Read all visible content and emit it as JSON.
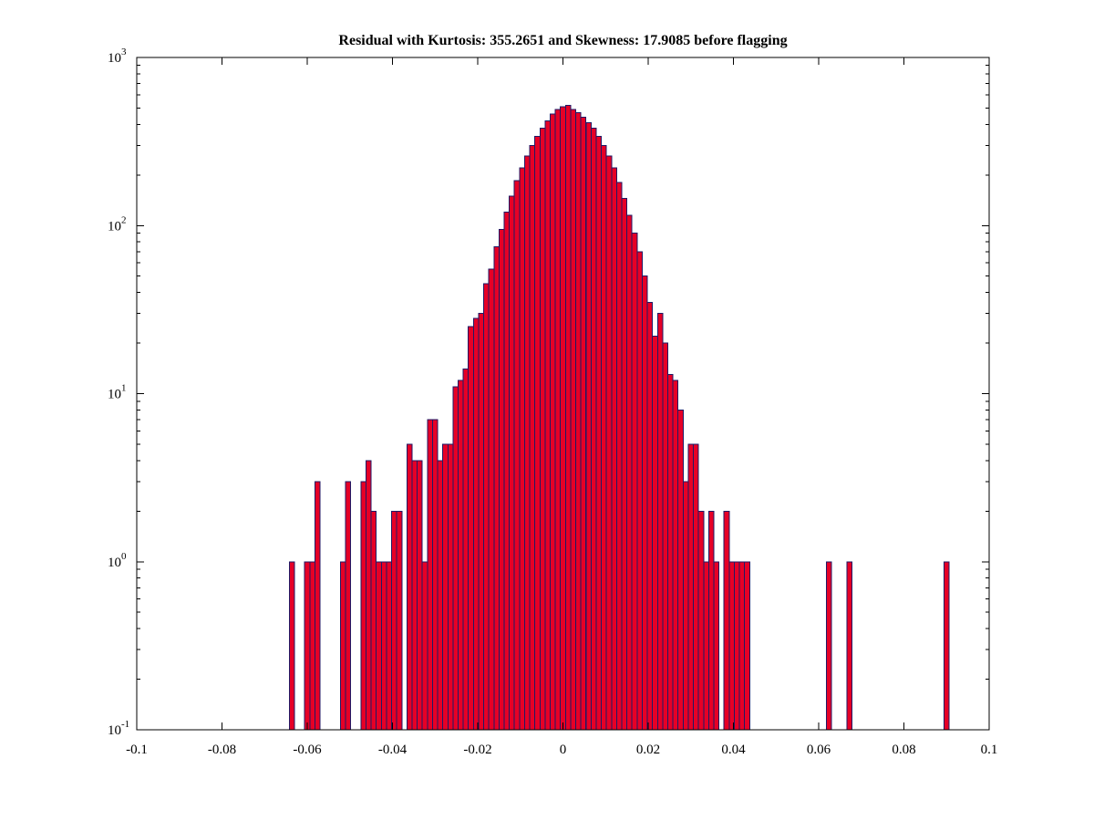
{
  "figure": {
    "background": "#ffffff"
  },
  "chart_data": {
    "type": "bar",
    "subtype": "histogram",
    "title": "Residual with Kurtosis: 355.2651 and Skewness: 17.9085 before flagging",
    "xlabel": "",
    "ylabel": "",
    "xlim": [
      -0.1,
      0.1
    ],
    "yscale": "log",
    "ylim": [
      0.1,
      1000
    ],
    "grid": false,
    "legend": null,
    "x_ticks": [
      -0.1,
      -0.08,
      -0.06,
      -0.04,
      -0.02,
      0,
      0.02,
      0.04,
      0.06,
      0.08,
      0.1
    ],
    "x_tick_labels": [
      "-0.1",
      "-0.08",
      "-0.06",
      "-0.04",
      "-0.02",
      "0",
      "0.02",
      "0.04",
      "0.06",
      "0.08",
      "0.1"
    ],
    "y_tick_exponents": [
      -1,
      0,
      1,
      2,
      3
    ],
    "y_tick_base": "10",
    "bin_width": 0.0012,
    "bars": [
      [
        -0.0636,
        1
      ],
      [
        -0.06,
        1
      ],
      [
        -0.0588,
        1
      ],
      [
        -0.0576,
        3
      ],
      [
        -0.0516,
        1
      ],
      [
        -0.0504,
        3
      ],
      [
        -0.0468,
        3
      ],
      [
        -0.0456,
        4
      ],
      [
        -0.0444,
        2
      ],
      [
        -0.0432,
        1
      ],
      [
        -0.042,
        1
      ],
      [
        -0.0408,
        1
      ],
      [
        -0.0396,
        2
      ],
      [
        -0.0384,
        2
      ],
      [
        -0.036,
        5
      ],
      [
        -0.0348,
        4
      ],
      [
        -0.0336,
        4
      ],
      [
        -0.0324,
        1
      ],
      [
        -0.0312,
        7
      ],
      [
        -0.03,
        7
      ],
      [
        -0.0288,
        4
      ],
      [
        -0.0276,
        5
      ],
      [
        -0.0264,
        5
      ],
      [
        -0.0252,
        11
      ],
      [
        -0.024,
        12
      ],
      [
        -0.0228,
        14
      ],
      [
        -0.0216,
        25
      ],
      [
        -0.0204,
        28
      ],
      [
        -0.0192,
        30
      ],
      [
        -0.018,
        45
      ],
      [
        -0.0168,
        55
      ],
      [
        -0.0156,
        75
      ],
      [
        -0.0144,
        95
      ],
      [
        -0.0132,
        120
      ],
      [
        -0.012,
        150
      ],
      [
        -0.0108,
        185
      ],
      [
        -0.0096,
        220
      ],
      [
        -0.0084,
        260
      ],
      [
        -0.0072,
        300
      ],
      [
        -0.006,
        340
      ],
      [
        -0.0048,
        380
      ],
      [
        -0.0036,
        420
      ],
      [
        -0.0024,
        460
      ],
      [
        -0.0012,
        490
      ],
      [
        0,
        510
      ],
      [
        0.0012,
        520
      ],
      [
        0.0024,
        490
      ],
      [
        0.0036,
        470
      ],
      [
        0.0048,
        440
      ],
      [
        0.006,
        410
      ],
      [
        0.0072,
        380
      ],
      [
        0.0084,
        340
      ],
      [
        0.0096,
        300
      ],
      [
        0.0108,
        260
      ],
      [
        0.012,
        220
      ],
      [
        0.0132,
        180
      ],
      [
        0.0144,
        145
      ],
      [
        0.0156,
        115
      ],
      [
        0.0168,
        90
      ],
      [
        0.018,
        70
      ],
      [
        0.0192,
        50
      ],
      [
        0.0204,
        35
      ],
      [
        0.0216,
        22
      ],
      [
        0.0228,
        30
      ],
      [
        0.024,
        20
      ],
      [
        0.0252,
        13
      ],
      [
        0.0264,
        12
      ],
      [
        0.0276,
        8
      ],
      [
        0.0288,
        3
      ],
      [
        0.03,
        5
      ],
      [
        0.0312,
        5
      ],
      [
        0.0324,
        2
      ],
      [
        0.0336,
        1
      ],
      [
        0.0348,
        2
      ],
      [
        0.036,
        1
      ],
      [
        0.0384,
        2
      ],
      [
        0.0396,
        1
      ],
      [
        0.0408,
        1
      ],
      [
        0.042,
        1
      ],
      [
        0.0432,
        1
      ],
      [
        0.0624,
        1
      ],
      [
        0.0672,
        1
      ],
      [
        0.09,
        1
      ]
    ],
    "colors": {
      "bar_fill": "#e60026",
      "bar_edge": "#1f1a66",
      "axis": "#000000",
      "background": "#ffffff"
    }
  }
}
